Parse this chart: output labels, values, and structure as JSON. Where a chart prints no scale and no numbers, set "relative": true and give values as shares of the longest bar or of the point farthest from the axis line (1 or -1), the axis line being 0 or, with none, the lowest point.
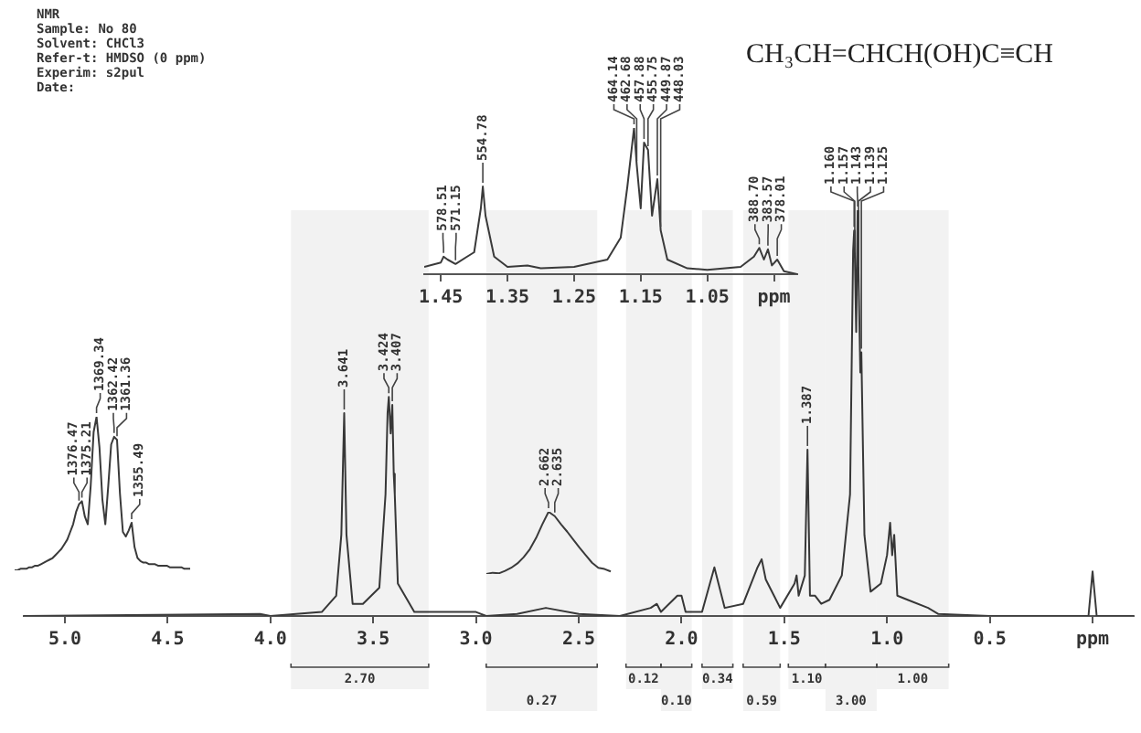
{
  "chart_data": [
    {
      "type": "line",
      "title": "CH₃CH=CHCH(OH)C≡CH",
      "relative": true,
      "color": "#3a3a3a",
      "xlim": [
        5.2,
        -0.2
      ],
      "xticks": [
        {
          "value": 5,
          "label": "5.0"
        },
        4.5,
        {
          "value": 4,
          "label": "4.0"
        },
        3.5,
        {
          "value": 3,
          "label": "3.0"
        },
        2.5,
        {
          "value": 2,
          "label": "2.0"
        },
        1.5,
        {
          "value": 1,
          "label": "1.0"
        },
        0.5,
        {
          "value": 0,
          "label": "ppm"
        }
      ],
      "x": [
        5.2,
        4.05,
        4.0,
        3.75,
        3.68,
        3.655,
        3.641,
        3.63,
        3.6,
        3.55,
        3.47,
        3.44,
        3.43,
        3.424,
        3.415,
        3.407,
        3.4,
        3.395,
        3.38,
        3.3,
        3.0,
        2.95,
        2.8,
        2.66,
        2.5,
        2.3,
        2.15,
        2.12,
        2.1,
        2.02,
        2.0,
        1.98,
        1.9,
        1.84,
        1.82,
        1.79,
        1.7,
        1.63,
        1.61,
        1.59,
        1.55,
        1.52,
        1.45,
        1.44,
        1.43,
        1.4,
        1.387,
        1.375,
        1.35,
        1.32,
        1.28,
        1.22,
        1.18,
        1.165,
        1.16,
        1.157,
        1.15,
        1.143,
        1.139,
        1.13,
        1.125,
        1.11,
        1.08,
        1.03,
        1.0,
        0.985,
        0.975,
        0.965,
        0.95,
        0.9,
        0.8,
        0.75,
        0.5,
        0.02,
        0.0,
        -0.02,
        -0.2
      ],
      "values": [
        0,
        0.005,
        0,
        0.01,
        0.05,
        0.2,
        0.5,
        0.2,
        0.03,
        0.03,
        0.07,
        0.3,
        0.5,
        0.54,
        0.45,
        0.52,
        0.35,
        0.3,
        0.08,
        0.01,
        0.01,
        0,
        0.005,
        0.02,
        0.005,
        0,
        0.02,
        0.03,
        0.01,
        0.05,
        0.05,
        0.01,
        0.01,
        0.12,
        0.08,
        0.02,
        0.03,
        0.12,
        0.14,
        0.09,
        0.05,
        0.02,
        0.08,
        0.1,
        0.05,
        0.1,
        0.41,
        0.05,
        0.05,
        0.03,
        0.04,
        0.1,
        0.3,
        0.9,
        0.95,
        0.9,
        0.7,
        1.0,
        0.85,
        0.6,
        0.65,
        0.2,
        0.06,
        0.08,
        0.15,
        0.23,
        0.15,
        0.2,
        0.05,
        0.04,
        0.02,
        0.005,
        0,
        0,
        0.11,
        0,
        0
      ],
      "bands": [
        {
          "axis": "x",
          "from": 3.9,
          "to": 3.23,
          "label": "2.70"
        },
        {
          "axis": "x",
          "from": 2.95,
          "to": 2.41,
          "label": "0.27"
        },
        {
          "axis": "x",
          "from": 2.27,
          "to": 2.1,
          "label": "0.12"
        },
        {
          "axis": "x",
          "from": 2.1,
          "to": 1.95,
          "label": "0.10"
        },
        {
          "axis": "x",
          "from": 1.9,
          "to": 1.75,
          "label": "0.34"
        },
        {
          "axis": "x",
          "from": 1.7,
          "to": 1.52,
          "label": "0.59"
        },
        {
          "axis": "x",
          "from": 1.48,
          "to": 1.3,
          "label": "1.10"
        },
        {
          "axis": "x",
          "from": 1.3,
          "to": 1.05,
          "label": "3.00"
        },
        {
          "axis": "x",
          "from": 1.05,
          "to": 0.7,
          "label": "1.00"
        }
      ],
      "annotations": [
        "NMR",
        "Sample: No 80",
        "Solvent: CHCl3",
        "Refer-t: HMDSO (0 ppm)",
        "Experim: s2pul",
        "Date:",
        {
          "text": "3.641",
          "x": 3.641,
          "y": 0.5
        },
        {
          "text": "3.424",
          "x": 3.424,
          "y": 0.54
        },
        {
          "text": "3.407",
          "x": 3.407,
          "y": 0.52
        },
        {
          "text": "1.387",
          "x": 1.387,
          "y": 0.41
        },
        {
          "text": "1.160",
          "x": 1.16,
          "y": 0.95
        },
        {
          "text": "1.157",
          "x": 1.157,
          "y": 0.9
        },
        {
          "text": "1.143",
          "x": 1.143,
          "y": 1.0
        },
        {
          "text": "1.139",
          "x": 1.139,
          "y": 0.85
        },
        {
          "text": "1.125",
          "x": 1.125,
          "y": 0.65
        }
      ]
    },
    {
      "type": "line",
      "relative": true,
      "color": "#3a3a3a",
      "xlim": [
        1.475,
        0.915
      ],
      "xticks": [
        1.45,
        1.35,
        1.25,
        1.15,
        1.05,
        {
          "value": 0.95,
          "label": "ppm"
        }
      ],
      "x": [
        1.475,
        1.45,
        1.446,
        1.44,
        1.428,
        1.4,
        1.39,
        1.387,
        1.383,
        1.37,
        1.35,
        1.32,
        1.3,
        1.25,
        1.2,
        1.18,
        1.17,
        1.16,
        1.156,
        1.15,
        1.145,
        1.139,
        1.133,
        1.125,
        1.12,
        1.11,
        1.08,
        1.05,
        1.0,
        0.98,
        0.972,
        0.965,
        0.959,
        0.953,
        0.945,
        0.935,
        0.915
      ],
      "values": [
        0.05,
        0.08,
        0.12,
        0.1,
        0.07,
        0.15,
        0.45,
        0.6,
        0.4,
        0.12,
        0.05,
        0.06,
        0.04,
        0.05,
        0.1,
        0.25,
        0.6,
        1.0,
        0.75,
        0.45,
        0.9,
        0.85,
        0.4,
        0.65,
        0.3,
        0.1,
        0.04,
        0.03,
        0.05,
        0.12,
        0.18,
        0.1,
        0.17,
        0.06,
        0.1,
        0.02,
        0
      ],
      "annotations": [
        {
          "text": "578.51",
          "x": 1.446,
          "y": 0.12
        },
        {
          "text": "571.15",
          "x": 1.428,
          "y": 0.07
        },
        {
          "text": "554.78",
          "x": 1.387,
          "y": 0.6
        },
        {
          "text": "464.14",
          "x": 1.16,
          "y": 1.0
        },
        {
          "text": "462.68",
          "x": 1.156,
          "y": 0.75
        },
        {
          "text": "457.88",
          "x": 1.145,
          "y": 0.9
        },
        {
          "text": "455.75",
          "x": 1.139,
          "y": 0.85
        },
        {
          "text": "449.87",
          "x": 1.125,
          "y": 0.65
        },
        {
          "text": "448.03",
          "x": 1.12,
          "y": 0.3
        },
        {
          "text": "388.70",
          "x": 0.972,
          "y": 0.18
        },
        {
          "text": "383.57",
          "x": 0.959,
          "y": 0.17
        },
        {
          "text": "378.01",
          "x": 0.945,
          "y": 0.1
        }
      ]
    },
    {
      "type": "line",
      "relative": true,
      "tick_labels": false,
      "color": "#3a3a3a",
      "categories": [
        null,
        null,
        null,
        null,
        null,
        null,
        null,
        null,
        null,
        null,
        null,
        null,
        null,
        null,
        null,
        null,
        null,
        null,
        null,
        null,
        null,
        null,
        null,
        null,
        null,
        null,
        null,
        null,
        null,
        null,
        null,
        null,
        null,
        null,
        null,
        null,
        null,
        null,
        null,
        null,
        null,
        null,
        null,
        null,
        null,
        null,
        null,
        null,
        null,
        null,
        null,
        null,
        null,
        null,
        null,
        null,
        null,
        null,
        null,
        null,
        null
      ],
      "values": [
        0,
        0,
        0.01,
        0.01,
        0.01,
        0.02,
        0.02,
        0.03,
        0.03,
        0.04,
        0.05,
        0.06,
        0.07,
        0.08,
        0.1,
        0.12,
        0.14,
        0.17,
        0.2,
        0.25,
        0.3,
        0.38,
        0.43,
        0.45,
        0.35,
        0.3,
        0.55,
        0.9,
        1.0,
        0.8,
        0.46,
        0.3,
        0.55,
        0.82,
        0.87,
        0.85,
        0.5,
        0.25,
        0.22,
        0.26,
        0.31,
        0.15,
        0.08,
        0.06,
        0.05,
        0.05,
        0.04,
        0.04,
        0.04,
        0.03,
        0.03,
        0.03,
        0.03,
        0.02,
        0.02,
        0.02,
        0.02,
        0.02,
        0.01,
        0.01,
        0.01
      ],
      "annotations": [
        {
          "text": "1376.47",
          "y": 0.43
        },
        {
          "text": "1375.21",
          "y": 0.45
        },
        {
          "text": "1369.34",
          "y": 1.0
        },
        {
          "text": "1362.42",
          "y": 0.87
        },
        {
          "text": "1361.36",
          "y": 0.85
        },
        {
          "text": "1355.49",
          "y": 0.31
        }
      ]
    },
    {
      "type": "line",
      "relative": true,
      "tick_labels": false,
      "color": "#3a3a3a",
      "categories": [
        null,
        null,
        null,
        null,
        null,
        null,
        null,
        null,
        null,
        null,
        null,
        null,
        null,
        null,
        null,
        null,
        null,
        null,
        null,
        null,
        null
      ],
      "values": [
        0,
        0.02,
        0.01,
        0.05,
        0.1,
        0.17,
        0.27,
        0.4,
        0.58,
        0.8,
        1.0,
        0.93,
        0.8,
        0.68,
        0.55,
        0.42,
        0.3,
        0.18,
        0.1,
        0.08,
        0.04
      ],
      "annotations": [
        {
          "text": "2.662",
          "y": 1.0
        },
        {
          "text": "2.635",
          "y": 0.93
        }
      ]
    }
  ]
}
